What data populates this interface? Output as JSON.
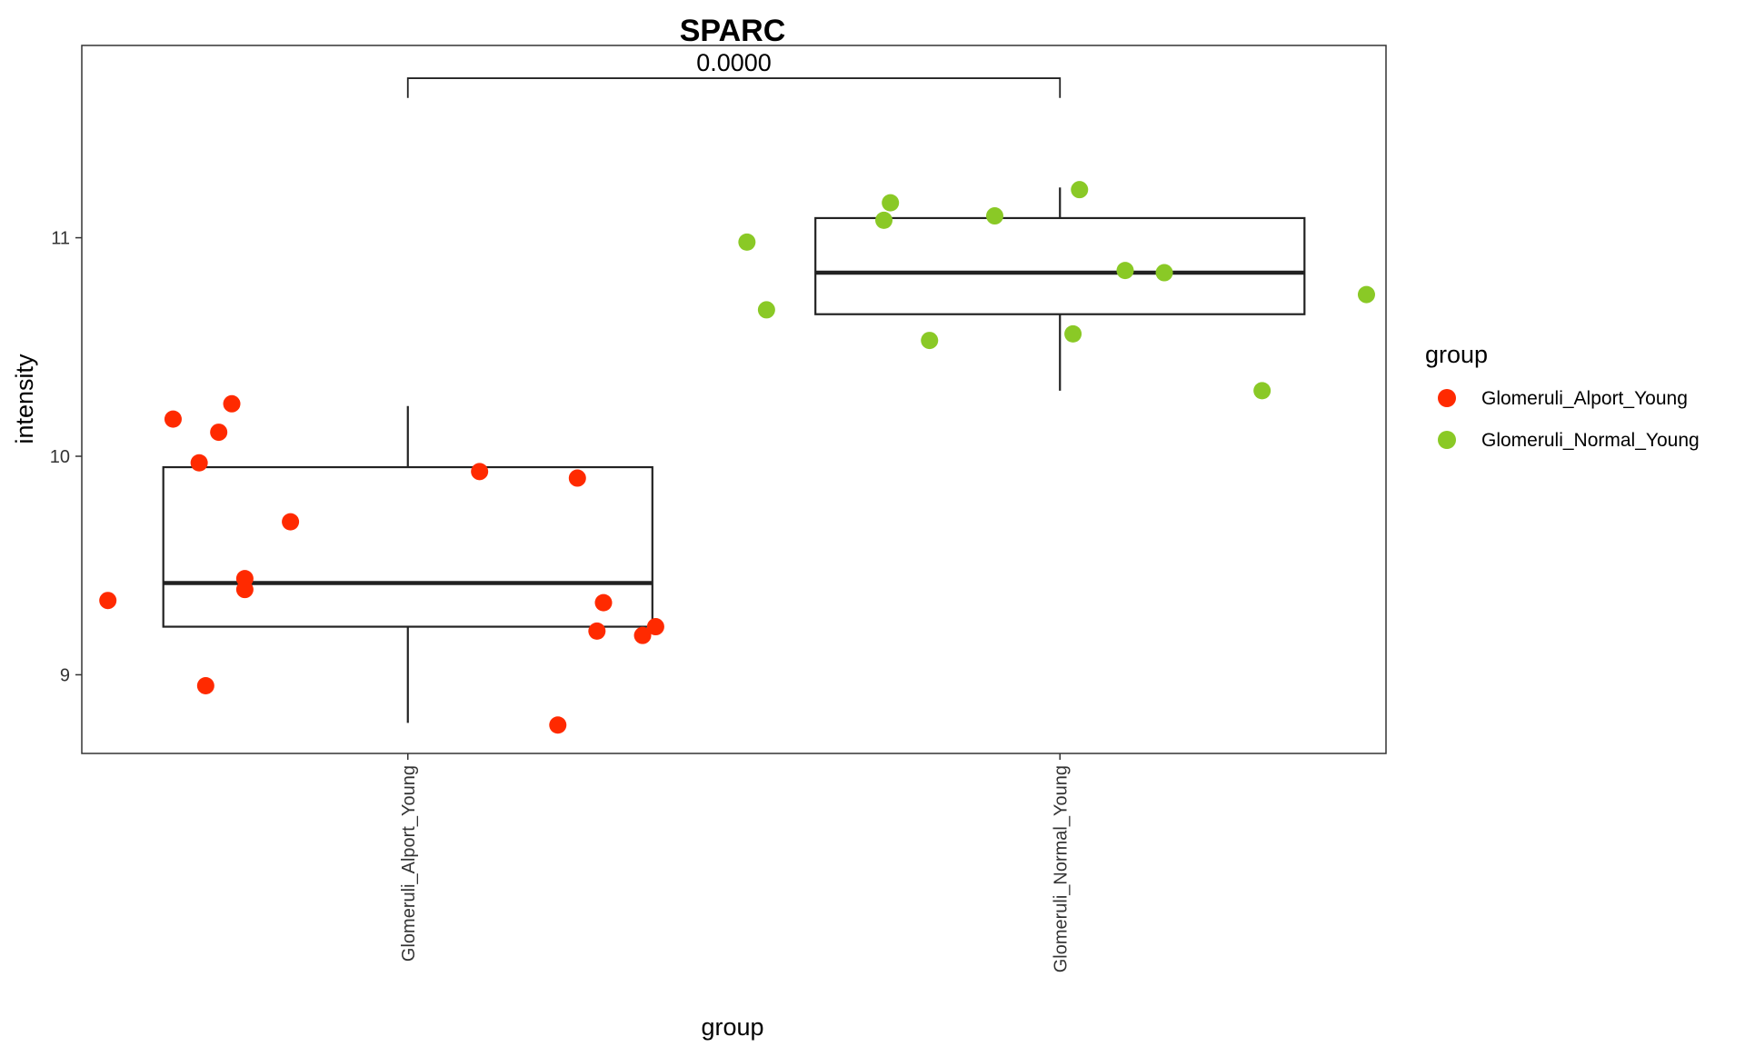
{
  "chart_data": {
    "type": "box",
    "title": "SPARC",
    "xlabel": "group",
    "ylabel": "intensity",
    "ylim": [
      8.64,
      11.88
    ],
    "yticks": [
      9,
      10,
      11
    ],
    "grid": false,
    "categories": [
      "Glomeruli_Alport_Young",
      "Glomeruli_Normal_Young"
    ],
    "series": [
      {
        "name": "Glomeruli_Alport_Young",
        "color": "#ff2a00",
        "box": {
          "whisker_low": 8.78,
          "q1": 9.22,
          "median": 9.42,
          "q3": 9.95,
          "whisker_high": 10.23
        },
        "points": [
          {
            "jitter": -0.46,
            "y": 9.34
          },
          {
            "jitter": -0.36,
            "y": 10.17
          },
          {
            "jitter": -0.32,
            "y": 9.97
          },
          {
            "jitter": -0.31,
            "y": 8.95
          },
          {
            "jitter": -0.29,
            "y": 10.11
          },
          {
            "jitter": -0.27,
            "y": 10.24
          },
          {
            "jitter": -0.25,
            "y": 9.44
          },
          {
            "jitter": -0.25,
            "y": 9.39
          },
          {
            "jitter": -0.18,
            "y": 9.7
          },
          {
            "jitter": 0.11,
            "y": 9.93
          },
          {
            "jitter": 0.23,
            "y": 8.77
          },
          {
            "jitter": 0.26,
            "y": 9.9
          },
          {
            "jitter": 0.29,
            "y": 9.2
          },
          {
            "jitter": 0.3,
            "y": 9.33
          },
          {
            "jitter": 0.36,
            "y": 9.18
          },
          {
            "jitter": 0.38,
            "y": 9.22
          }
        ]
      },
      {
        "name": "Glomeruli_Normal_Young",
        "color": "#8ac926",
        "box": {
          "whisker_low": 10.3,
          "q1": 10.65,
          "median": 10.84,
          "q3": 11.09,
          "whisker_high": 11.23
        },
        "points": [
          {
            "jitter": -0.48,
            "y": 10.98
          },
          {
            "jitter": -0.45,
            "y": 10.67
          },
          {
            "jitter": -0.27,
            "y": 11.08
          },
          {
            "jitter": -0.26,
            "y": 11.16
          },
          {
            "jitter": -0.2,
            "y": 10.53
          },
          {
            "jitter": -0.1,
            "y": 11.1
          },
          {
            "jitter": 0.02,
            "y": 10.56
          },
          {
            "jitter": 0.03,
            "y": 11.22
          },
          {
            "jitter": 0.1,
            "y": 10.85
          },
          {
            "jitter": 0.16,
            "y": 10.84
          },
          {
            "jitter": 0.31,
            "y": 10.3
          },
          {
            "jitter": 0.47,
            "y": 10.74
          }
        ]
      }
    ],
    "annotation": {
      "text": "0.0000",
      "from": "Glomeruli_Alport_Young",
      "to": "Glomeruli_Normal_Young",
      "y": 11.73,
      "tip": 11.64
    },
    "legend": {
      "title": "group",
      "placement": "right",
      "entries": [
        "Glomeruli_Alport_Young",
        "Glomeruli_Normal_Young"
      ]
    }
  }
}
